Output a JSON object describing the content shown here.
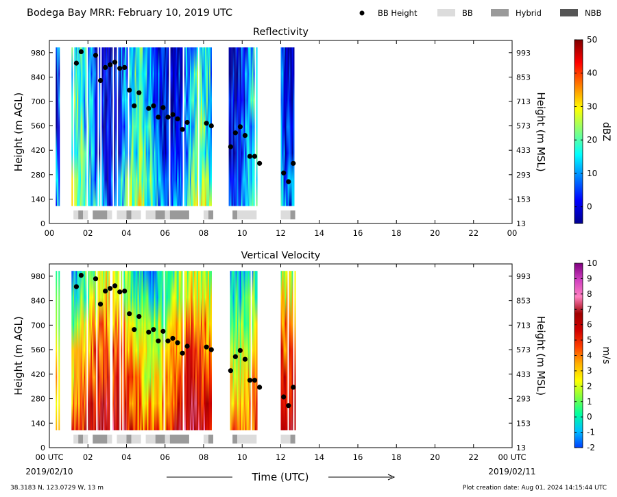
{
  "header": {
    "title": "Bodega Bay MRR:  February 10, 2019 UTC",
    "legend": [
      {
        "label": "BB Height",
        "marker": "dot",
        "color": "#000000"
      },
      {
        "label": "BB",
        "marker": "box",
        "color": "#dcdcdc"
      },
      {
        "label": "Hybrid",
        "marker": "box",
        "color": "#9a9a9a"
      },
      {
        "label": "NBB",
        "marker": "box",
        "color": "#555555"
      }
    ]
  },
  "footer": {
    "location": "38.3183 N, 123.0729 W, 13 m",
    "creation": "Plot creation date: Aug 01, 2024 14:15:44 UTC",
    "time_label": "Time (UTC)",
    "start_date": "2019/02/10",
    "end_date": "2019/02/11"
  },
  "chart_data": [
    {
      "type": "heatmap",
      "title": "Reflectivity",
      "ylabel": "Height (m AGL)",
      "ylabel_right": "Height (m MSL)",
      "xlabel": "",
      "xticks": [
        "00",
        "02",
        "04",
        "06",
        "08",
        "10",
        "12",
        "14",
        "16",
        "18",
        "20",
        "22",
        "00"
      ],
      "xlim": [
        0,
        24
      ],
      "yticks": [
        0,
        140,
        280,
        420,
        560,
        700,
        840,
        980
      ],
      "yticks_right": [
        "13",
        "153",
        "293",
        "433",
        "573",
        "713",
        "853",
        "993"
      ],
      "ylim": [
        0,
        1050
      ],
      "colorbar": {
        "label": "dBZ",
        "min": -5,
        "max": 50,
        "ticks": [
          0,
          10,
          20,
          30,
          40,
          50
        ],
        "colors": [
          "#00008f",
          "#0000ff",
          "#0080ff",
          "#00ffff",
          "#80ff80",
          "#ffff00",
          "#ff8000",
          "#ff0000",
          "#800000"
        ]
      },
      "data_columns_hours": [
        [
          0.33,
          0.52
        ],
        [
          1.15,
          1.9
        ],
        [
          2.0,
          4.0
        ],
        [
          4.0,
          6.9
        ],
        [
          7.0,
          7.95
        ],
        [
          8.0,
          8.42
        ],
        [
          9.3,
          10.75
        ],
        [
          12.0,
          12.72
        ]
      ],
      "bb_height": {
        "hours": [
          1.4,
          1.65,
          2.4,
          2.65,
          2.9,
          3.15,
          3.4,
          3.65,
          3.9,
          4.15,
          4.4,
          4.65,
          5.15,
          5.4,
          5.65,
          5.9,
          6.15,
          6.4,
          6.65,
          6.9,
          7.15,
          8.15,
          8.4,
          9.4,
          9.65,
          9.9,
          10.15,
          10.4,
          10.65,
          10.9,
          12.15,
          12.4,
          12.65
        ],
        "heights": [
          920,
          985,
          965,
          820,
          895,
          910,
          925,
          890,
          895,
          765,
          675,
          750,
          660,
          675,
          610,
          665,
          610,
          625,
          600,
          540,
          580,
          575,
          560,
          440,
          520,
          555,
          505,
          385,
          385,
          345,
          290,
          240,
          345
        ]
      },
      "bb_type_bar": [
        {
          "start": 1.25,
          "end": 1.5,
          "type": "BB"
        },
        {
          "start": 1.5,
          "end": 1.75,
          "type": "Hybrid"
        },
        {
          "start": 1.75,
          "end": 2.0,
          "type": "BB"
        },
        {
          "start": 2.25,
          "end": 3.0,
          "type": "Hybrid"
        },
        {
          "start": 3.0,
          "end": 3.25,
          "type": "BB"
        },
        {
          "start": 3.5,
          "end": 4.0,
          "type": "BB"
        },
        {
          "start": 4.0,
          "end": 4.25,
          "type": "Hybrid"
        },
        {
          "start": 4.25,
          "end": 4.75,
          "type": "BB"
        },
        {
          "start": 5.0,
          "end": 5.5,
          "type": "BB"
        },
        {
          "start": 5.5,
          "end": 6.0,
          "type": "Hybrid"
        },
        {
          "start": 6.0,
          "end": 6.25,
          "type": "BB"
        },
        {
          "start": 6.25,
          "end": 7.25,
          "type": "Hybrid"
        },
        {
          "start": 8.0,
          "end": 8.25,
          "type": "BB"
        },
        {
          "start": 8.25,
          "end": 8.5,
          "type": "Hybrid"
        },
        {
          "start": 9.5,
          "end": 9.75,
          "type": "Hybrid"
        },
        {
          "start": 9.75,
          "end": 10.75,
          "type": "BB"
        },
        {
          "start": 12.0,
          "end": 12.5,
          "type": "BB"
        },
        {
          "start": 12.5,
          "end": 12.75,
          "type": "Hybrid"
        }
      ]
    },
    {
      "type": "heatmap",
      "title": "Vertical Velocity",
      "ylabel": "Height (m AGL)",
      "ylabel_right": "Height (m MSL)",
      "xlabel": "Time (UTC)",
      "xticks": [
        "00 UTC",
        "02",
        "04",
        "06",
        "08",
        "10",
        "12",
        "14",
        "16",
        "18",
        "20",
        "22",
        "00 UTC"
      ],
      "xlim": [
        0,
        24
      ],
      "yticks": [
        0,
        140,
        280,
        420,
        560,
        700,
        840,
        980
      ],
      "yticks_right": [
        "13",
        "153",
        "293",
        "433",
        "573",
        "713",
        "853",
        "993"
      ],
      "ylim": [
        0,
        1050
      ],
      "colorbar": {
        "label": "m/s",
        "min": -2,
        "max": 10,
        "ticks": [
          -2,
          -1,
          0,
          1,
          2,
          3,
          4,
          5,
          6,
          7,
          8,
          9,
          10
        ],
        "colors": [
          "#0040ff",
          "#00c0ff",
          "#00ffa0",
          "#80ff40",
          "#ffff00",
          "#ffb000",
          "#ff4000",
          "#d00000",
          "#a00000",
          "#ff80c0",
          "#d040c0",
          "#800080"
        ]
      },
      "data_columns_hours": [
        [
          0.33,
          0.52
        ],
        [
          1.15,
          1.9
        ],
        [
          2.0,
          4.0
        ],
        [
          4.0,
          6.9
        ],
        [
          7.0,
          7.95
        ],
        [
          8.0,
          8.42
        ],
        [
          9.3,
          10.75
        ],
        [
          12.0,
          12.72
        ]
      ],
      "bb_height": {
        "hours": [
          1.4,
          1.65,
          2.4,
          2.65,
          2.9,
          3.15,
          3.4,
          3.65,
          3.9,
          4.15,
          4.4,
          4.65,
          5.15,
          5.4,
          5.65,
          5.9,
          6.15,
          6.4,
          6.65,
          6.9,
          7.15,
          8.15,
          8.4,
          9.4,
          9.65,
          9.9,
          10.15,
          10.4,
          10.65,
          10.9,
          12.15,
          12.4,
          12.65
        ],
        "heights": [
          920,
          985,
          965,
          820,
          895,
          910,
          925,
          890,
          895,
          765,
          675,
          750,
          660,
          675,
          610,
          665,
          610,
          625,
          600,
          540,
          580,
          575,
          560,
          440,
          520,
          555,
          505,
          385,
          385,
          345,
          290,
          240,
          345
        ]
      },
      "bb_type_bar": [
        {
          "start": 1.25,
          "end": 1.5,
          "type": "BB"
        },
        {
          "start": 1.5,
          "end": 1.75,
          "type": "Hybrid"
        },
        {
          "start": 1.75,
          "end": 2.0,
          "type": "BB"
        },
        {
          "start": 2.25,
          "end": 3.0,
          "type": "Hybrid"
        },
        {
          "start": 3.0,
          "end": 3.25,
          "type": "BB"
        },
        {
          "start": 3.5,
          "end": 4.0,
          "type": "BB"
        },
        {
          "start": 4.0,
          "end": 4.25,
          "type": "Hybrid"
        },
        {
          "start": 4.25,
          "end": 4.75,
          "type": "BB"
        },
        {
          "start": 5.0,
          "end": 5.5,
          "type": "BB"
        },
        {
          "start": 5.5,
          "end": 6.0,
          "type": "Hybrid"
        },
        {
          "start": 6.0,
          "end": 6.25,
          "type": "BB"
        },
        {
          "start": 6.25,
          "end": 7.25,
          "type": "Hybrid"
        },
        {
          "start": 8.0,
          "end": 8.25,
          "type": "BB"
        },
        {
          "start": 8.25,
          "end": 8.5,
          "type": "Hybrid"
        },
        {
          "start": 9.5,
          "end": 9.75,
          "type": "Hybrid"
        },
        {
          "start": 9.75,
          "end": 10.75,
          "type": "BB"
        },
        {
          "start": 12.0,
          "end": 12.5,
          "type": "BB"
        },
        {
          "start": 12.5,
          "end": 12.75,
          "type": "Hybrid"
        }
      ]
    }
  ]
}
